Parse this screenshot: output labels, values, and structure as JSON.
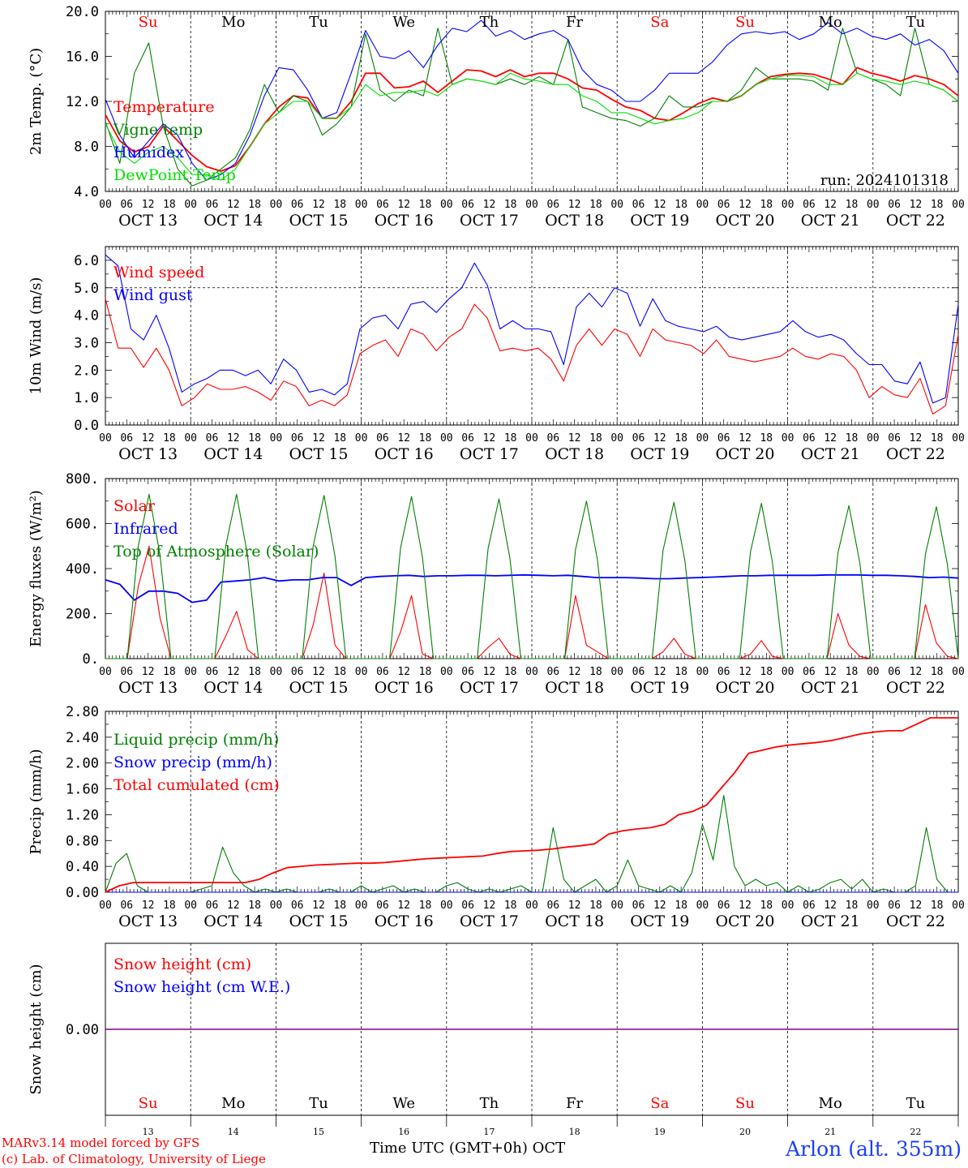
{
  "days": [
    {
      "abbr": "Su",
      "weekend": true,
      "date_label": "OCT 13",
      "day_num": "13"
    },
    {
      "abbr": "Mo",
      "weekend": false,
      "date_label": "OCT 14",
      "day_num": "14"
    },
    {
      "abbr": "Tu",
      "weekend": false,
      "date_label": "OCT 15",
      "day_num": "15"
    },
    {
      "abbr": "We",
      "weekend": false,
      "date_label": "OCT 16",
      "day_num": "16"
    },
    {
      "abbr": "Th",
      "weekend": false,
      "date_label": "OCT 17",
      "day_num": "17"
    },
    {
      "abbr": "Fr",
      "weekend": false,
      "date_label": "OCT 18",
      "day_num": "18"
    },
    {
      "abbr": "Sa",
      "weekend": true,
      "date_label": "OCT 19",
      "day_num": "19"
    },
    {
      "abbr": "Su",
      "weekend": true,
      "date_label": "OCT 20",
      "day_num": "20"
    },
    {
      "abbr": "Mo",
      "weekend": false,
      "date_label": "OCT 21",
      "day_num": "21"
    },
    {
      "abbr": "Tu",
      "weekend": false,
      "date_label": "OCT 22",
      "day_num": "22"
    }
  ],
  "hour_ticks": [
    "00",
    "06",
    "12",
    "18"
  ],
  "colors": {
    "weekend": "#ff0000",
    "weekday": "#000000",
    "red": "#ff0000",
    "blue": "#0000ff",
    "green": "#008000",
    "lightgreen": "#00e000",
    "purple": "#800080"
  },
  "chart_data": [
    {
      "type": "line",
      "ylabel": "2m Temp. (°C)",
      "ylim": [
        4.0,
        20.0
      ],
      "yticks": [
        "4.0",
        "8.0",
        "12.0",
        "16.0",
        "20.0"
      ],
      "annotation": "run: 2024101318",
      "x_start": "2024-10-13 00:00 UTC",
      "x_step_hours": 3,
      "series": [
        {
          "name": "Temperature",
          "color": "red",
          "values": [
            10.8,
            8.5,
            7.5,
            8.0,
            9.8,
            8.5,
            7.2,
            6.2,
            5.8,
            6.3,
            8.0,
            10.0,
            11.5,
            12.5,
            12.3,
            10.5,
            10.5,
            12.0,
            14.5,
            14.5,
            13.2,
            13.3,
            13.8,
            12.8,
            13.8,
            14.8,
            14.7,
            14.2,
            14.8,
            14.2,
            14.5,
            14.5,
            14.0,
            13.2,
            13.0,
            12.2,
            11.5,
            11.2,
            10.5,
            10.3,
            11.0,
            11.8,
            12.3,
            12.0,
            12.5,
            13.5,
            14.2,
            14.4,
            14.5,
            14.4,
            14.0,
            13.5,
            15.0,
            14.5,
            14.2,
            13.8,
            14.3,
            14.0,
            13.5,
            12.5
          ]
        },
        {
          "name": "Vigne temp",
          "color": "green",
          "values": [
            10.2,
            6.5,
            14.5,
            17.2,
            9.8,
            6.0,
            4.5,
            5.0,
            6.0,
            7.0,
            9.5,
            13.5,
            11.0,
            12.5,
            12.0,
            9.0,
            10.0,
            11.5,
            18.0,
            13.0,
            12.0,
            13.0,
            12.5,
            18.5,
            13.5,
            14.0,
            13.8,
            13.5,
            14.0,
            13.5,
            14.2,
            13.5,
            17.5,
            11.5,
            11.0,
            10.5,
            10.3,
            9.8,
            10.5,
            12.5,
            11.5,
            11.5,
            12.0,
            12.0,
            13.0,
            15.0,
            14.0,
            14.0,
            14.0,
            13.8,
            13.0,
            18.5,
            14.5,
            14.0,
            13.5,
            12.5,
            18.5,
            13.5,
            13.0,
            12.0
          ]
        },
        {
          "name": "Humidex",
          "color": "blue",
          "values": [
            12.2,
            9.0,
            7.0,
            8.5,
            10.0,
            9.0,
            6.5,
            5.0,
            5.5,
            6.5,
            9.0,
            12.5,
            15.0,
            14.8,
            13.0,
            10.5,
            11.0,
            14.5,
            18.3,
            16.0,
            15.8,
            16.5,
            15.0,
            17.0,
            18.5,
            18.2,
            19.2,
            17.8,
            18.3,
            17.5,
            18.0,
            18.3,
            17.5,
            14.8,
            13.5,
            13.0,
            12.0,
            12.0,
            13.0,
            14.5,
            14.5,
            14.5,
            15.5,
            17.0,
            18.0,
            18.2,
            18.0,
            18.2,
            17.5,
            18.0,
            19.0,
            18.0,
            18.5,
            17.8,
            17.5,
            18.0,
            17.0,
            17.5,
            16.5,
            14.5
          ]
        },
        {
          "name": "DewPoint Temp",
          "color": "lightgreen",
          "values": [
            10.0,
            7.5,
            6.5,
            7.5,
            8.0,
            7.0,
            5.5,
            5.5,
            5.0,
            6.0,
            8.0,
            10.0,
            11.0,
            12.0,
            12.0,
            10.5,
            10.5,
            11.5,
            13.5,
            12.5,
            12.8,
            12.8,
            13.0,
            12.5,
            13.5,
            14.0,
            13.8,
            13.5,
            14.5,
            14.0,
            13.8,
            13.5,
            13.5,
            12.5,
            12.0,
            11.0,
            11.0,
            10.5,
            10.0,
            10.3,
            10.5,
            11.0,
            12.0,
            12.0,
            12.5,
            13.5,
            14.0,
            14.3,
            14.3,
            14.2,
            13.5,
            13.5,
            14.5,
            14.0,
            13.8,
            13.5,
            13.8,
            13.5,
            13.0,
            12.0
          ]
        }
      ]
    },
    {
      "type": "line",
      "ylabel": "10m Wind (m/s)",
      "ylim": [
        0.0,
        6.5
      ],
      "yticks": [
        "0.0",
        "1.0",
        "2.0",
        "3.0",
        "4.0",
        "5.0",
        "6.0"
      ],
      "ref_line": 5.0,
      "x_start": "2024-10-13 00:00 UTC",
      "x_step_hours": 3,
      "series": [
        {
          "name": "Wind speed",
          "color": "red",
          "values": [
            4.6,
            2.8,
            2.8,
            2.1,
            2.8,
            2.0,
            0.7,
            1.0,
            1.5,
            1.3,
            1.3,
            1.4,
            1.2,
            0.9,
            1.6,
            1.4,
            0.7,
            0.9,
            0.7,
            1.1,
            2.6,
            2.9,
            3.1,
            2.5,
            3.5,
            3.3,
            2.7,
            3.2,
            3.5,
            4.4,
            3.9,
            2.7,
            2.8,
            2.7,
            2.8,
            2.4,
            1.6,
            2.9,
            3.5,
            2.9,
            3.5,
            3.3,
            2.5,
            3.5,
            3.1,
            3.0,
            2.9,
            2.6,
            3.1,
            2.5,
            2.4,
            2.3,
            2.4,
            2.5,
            2.8,
            2.5,
            2.4,
            2.6,
            2.5,
            2.0,
            1.0,
            1.4,
            1.1,
            1.0,
            1.7,
            0.4,
            0.7,
            3.3
          ]
        },
        {
          "name": "Wind gust",
          "color": "blue",
          "values": [
            6.2,
            5.8,
            3.5,
            3.1,
            4.0,
            2.8,
            1.2,
            1.5,
            1.7,
            2.0,
            2.0,
            1.8,
            2.0,
            1.5,
            2.4,
            2.0,
            1.2,
            1.3,
            1.1,
            1.5,
            3.5,
            3.9,
            4.0,
            3.5,
            4.4,
            4.5,
            4.1,
            4.6,
            5.0,
            5.9,
            5.1,
            3.5,
            3.8,
            3.5,
            3.5,
            3.4,
            2.2,
            4.3,
            4.8,
            4.3,
            5.0,
            4.8,
            3.6,
            4.6,
            3.8,
            3.6,
            3.5,
            3.4,
            3.6,
            3.2,
            3.1,
            3.2,
            3.3,
            3.4,
            3.8,
            3.4,
            3.2,
            3.3,
            3.1,
            2.6,
            2.2,
            2.2,
            1.6,
            1.5,
            2.3,
            0.8,
            1.0,
            4.4
          ]
        }
      ]
    },
    {
      "type": "line",
      "ylabel": "Energy fluxes (W/m²)",
      "ylim": [
        0,
        800
      ],
      "yticks": [
        "0.",
        "200.",
        "400.",
        "600.",
        "800."
      ],
      "x_start": "2024-10-13 00:00 UTC",
      "x_step_hours": 3,
      "series": [
        {
          "name": "Solar",
          "color": "red",
          "values": [
            0,
            0,
            0,
            320,
            500,
            180,
            0,
            0,
            0,
            0,
            0,
            100,
            210,
            40,
            0,
            0,
            0,
            0,
            0,
            150,
            380,
            60,
            0,
            0,
            0,
            0,
            0,
            120,
            280,
            20,
            0,
            0,
            0,
            0,
            0,
            50,
            90,
            20,
            0,
            0,
            0,
            0,
            0,
            280,
            60,
            30,
            0,
            0,
            0,
            0,
            0,
            30,
            90,
            20,
            0,
            0,
            0,
            0,
            0,
            20,
            80,
            10,
            0,
            0,
            0,
            0,
            0,
            200,
            60,
            10,
            0,
            0,
            0,
            0,
            0,
            240,
            70,
            10,
            0
          ]
        },
        {
          "name": "Infrared",
          "color": "blue",
          "values": [
            350,
            330,
            260,
            300,
            300,
            290,
            250,
            260,
            340,
            345,
            350,
            360,
            345,
            350,
            350,
            360,
            360,
            325,
            360,
            365,
            368,
            370,
            365,
            368,
            368,
            370,
            370,
            368,
            370,
            372,
            370,
            368,
            370,
            365,
            360,
            360,
            360,
            358,
            355,
            355,
            358,
            360,
            362,
            365,
            368,
            368,
            370,
            370,
            370,
            370,
            372,
            372,
            372,
            370,
            370,
            368,
            365,
            360,
            362,
            358
          ]
        },
        {
          "name": "Top of Atmosphere (Solar)",
          "color": "green",
          "values": [
            0,
            0,
            0,
            500,
            730,
            460,
            0,
            0,
            0,
            0,
            0,
            500,
            730,
            460,
            0,
            0,
            0,
            0,
            0,
            500,
            725,
            455,
            0,
            0,
            0,
            0,
            0,
            495,
            720,
            450,
            0,
            0,
            0,
            0,
            0,
            490,
            710,
            445,
            0,
            0,
            0,
            0,
            0,
            485,
            700,
            440,
            0,
            0,
            0,
            0,
            0,
            480,
            695,
            435,
            0,
            0,
            0,
            0,
            0,
            475,
            690,
            430,
            0,
            0,
            0,
            0,
            0,
            470,
            680,
            425,
            0,
            0,
            0,
            0,
            0,
            465,
            675,
            420,
            0
          ]
        }
      ]
    },
    {
      "type": "line",
      "ylabel": "Precip (mm/h)",
      "ylim": [
        0.0,
        2.8
      ],
      "yticks": [
        "0.00",
        "0.40",
        "0.80",
        "1.20",
        "1.60",
        "2.00",
        "2.40",
        "2.80"
      ],
      "x_start": "2024-10-13 00:00 UTC",
      "x_step_hours": 3,
      "series": [
        {
          "name": "Liquid precip (mm/h)",
          "color": "green",
          "values": [
            0.0,
            0.45,
            0.6,
            0.1,
            0.0,
            0.0,
            0.0,
            0.0,
            0.0,
            0.05,
            0.1,
            0.7,
            0.3,
            0.1,
            0.0,
            0.05,
            0.0,
            0.05,
            0.0,
            0.0,
            0.0,
            0.05,
            0.0,
            0.0,
            0.1,
            0.0,
            0.05,
            0.1,
            0.0,
            0.05,
            0.0,
            0.0,
            0.1,
            0.15,
            0.05,
            0.0,
            0.05,
            0.0,
            0.05,
            0.1,
            0.0,
            0.0,
            1.0,
            0.2,
            0.0,
            0.1,
            0.2,
            0.0,
            0.1,
            0.5,
            0.1,
            0.05,
            0.0,
            0.1,
            0.0,
            0.3,
            1.05,
            0.5,
            1.5,
            0.4,
            0.1,
            0.2,
            0.1,
            0.15,
            0.0,
            0.1,
            0.0,
            0.05,
            0.15,
            0.2,
            0.05,
            0.2,
            0.0,
            0.05,
            0.0,
            0.0,
            0.1,
            1.0,
            0.2,
            0.0,
            0.0
          ]
        },
        {
          "name": "Snow precip (mm/h)",
          "color": "blue",
          "values": [
            0,
            0,
            0,
            0,
            0,
            0,
            0,
            0,
            0,
            0,
            0,
            0,
            0,
            0,
            0,
            0,
            0,
            0,
            0,
            0,
            0,
            0,
            0,
            0,
            0,
            0,
            0,
            0,
            0,
            0,
            0,
            0,
            0,
            0,
            0,
            0,
            0,
            0,
            0,
            0,
            0,
            0,
            0,
            0,
            0,
            0,
            0,
            0,
            0,
            0,
            0,
            0,
            0,
            0,
            0,
            0,
            0,
            0,
            0,
            0
          ]
        },
        {
          "name": "Total cumulated (cm)",
          "color": "red",
          "values": [
            0.0,
            0.1,
            0.15,
            0.15,
            0.15,
            0.15,
            0.15,
            0.15,
            0.15,
            0.15,
            0.15,
            0.2,
            0.3,
            0.38,
            0.4,
            0.42,
            0.43,
            0.44,
            0.45,
            0.45,
            0.46,
            0.48,
            0.5,
            0.52,
            0.53,
            0.54,
            0.55,
            0.56,
            0.6,
            0.63,
            0.64,
            0.65,
            0.67,
            0.7,
            0.72,
            0.75,
            0.9,
            0.95,
            0.98,
            1.0,
            1.05,
            1.2,
            1.25,
            1.35,
            1.6,
            1.85,
            2.15,
            2.2,
            2.25,
            2.28,
            2.3,
            2.32,
            2.35,
            2.4,
            2.45,
            2.48,
            2.5,
            2.5,
            2.6,
            2.7,
            2.7,
            2.7
          ]
        }
      ]
    },
    {
      "type": "line",
      "ylabel": "Snow height (cm)",
      "yticks": [
        "0.00"
      ],
      "series": [
        {
          "name": "Snow height (cm)",
          "color": "red",
          "values": [
            0,
            0
          ]
        },
        {
          "name": "Snow height (cm W.E.)",
          "color": "blue",
          "values": [
            0,
            0
          ]
        }
      ]
    }
  ],
  "xlabel": "Time UTC (GMT+0h)",
  "month_label": "OCT",
  "footer": {
    "model": "MARv3.14 model forced by GFS",
    "copyright": "(c) Lab. of Climatology, University of Liege",
    "station": "Arlon (alt. 355m)"
  }
}
